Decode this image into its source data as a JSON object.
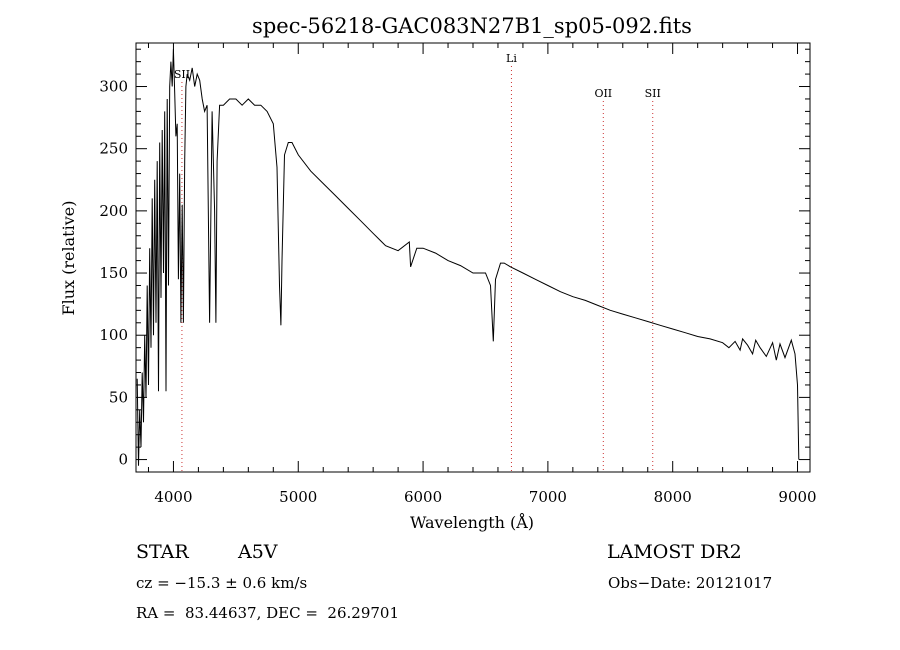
{
  "chart_data": {
    "type": "line",
    "title": "spec-56218-GAC083N27B1_sp05-092.fits",
    "xlabel": "Wavelength (Å)",
    "ylabel": "Flux (relative)",
    "xlim": [
      3700,
      9100
    ],
    "ylim": [
      -10,
      335
    ],
    "xticks": [
      4000,
      5000,
      6000,
      7000,
      8000,
      9000
    ],
    "yticks": [
      0,
      50,
      100,
      150,
      200,
      250,
      300
    ],
    "grid": false,
    "line_color": "#000000",
    "marker_color": "#cc3333",
    "spectral_lines": [
      {
        "label": "SII",
        "wavelength": 4068
      },
      {
        "label": "Li",
        "wavelength": 6708
      },
      {
        "label": "OII",
        "wavelength": 7444
      },
      {
        "label": "SII",
        "wavelength": 7840
      }
    ],
    "series": [
      {
        "x": [
          3710,
          3720,
          3730,
          3740,
          3750,
          3760,
          3770,
          3780,
          3790,
          3800,
          3810,
          3820,
          3830,
          3840,
          3850,
          3860,
          3870,
          3880,
          3890,
          3900,
          3910,
          3920,
          3930,
          3940,
          3950,
          3960,
          3970,
          3980,
          3990,
          4000,
          4010,
          4020,
          4030,
          4040,
          4050,
          4060,
          4070,
          4080,
          4090,
          4100,
          4110,
          4130,
          4150,
          4170,
          4190,
          4210,
          4230,
          4250,
          4270,
          4290,
          4310,
          4330,
          4340,
          4350,
          4370,
          4400,
          4450,
          4500,
          4550,
          4600,
          4650,
          4700,
          4750,
          4800,
          4830,
          4850,
          4861,
          4870,
          4890,
          4920,
          4950,
          5000,
          5100,
          5200,
          5300,
          5400,
          5500,
          5600,
          5700,
          5800,
          5890,
          5900,
          5950,
          6000,
          6100,
          6200,
          6300,
          6400,
          6500,
          6540,
          6563,
          6580,
          6620,
          6650,
          6700,
          6800,
          6900,
          7000,
          7100,
          7200,
          7300,
          7400,
          7500,
          7600,
          7700,
          7800,
          7900,
          8000,
          8100,
          8200,
          8300,
          8400,
          8450,
          8500,
          8540,
          8560,
          8600,
          8640,
          8665,
          8700,
          8750,
          8800,
          8830,
          8860,
          8900,
          8950,
          8980,
          9000,
          9010
        ],
        "values": [
          65,
          -5,
          40,
          10,
          70,
          30,
          100,
          50,
          140,
          60,
          170,
          90,
          210,
          100,
          225,
          110,
          240,
          55,
          255,
          130,
          265,
          150,
          280,
          55,
          290,
          140,
          300,
          320,
          300,
          330,
          295,
          260,
          270,
          145,
          230,
          110,
          205,
          110,
          240,
          300,
          310,
          305,
          315,
          300,
          310,
          305,
          290,
          280,
          285,
          110,
          280,
          200,
          110,
          240,
          285,
          285,
          290,
          290,
          285,
          290,
          285,
          285,
          280,
          270,
          235,
          140,
          108,
          160,
          245,
          255,
          255,
          245,
          232,
          222,
          212,
          202,
          192,
          182,
          172,
          168,
          175,
          155,
          170,
          170,
          166,
          160,
          156,
          150,
          150,
          140,
          95,
          145,
          158,
          158,
          155,
          150,
          145,
          140,
          135,
          131,
          128,
          124,
          120,
          117,
          114,
          111,
          108,
          105,
          102,
          99,
          97,
          94,
          90,
          95,
          88,
          97,
          92,
          85,
          96,
          90,
          83,
          94,
          80,
          93,
          82,
          96,
          85,
          60,
          0
        ]
      }
    ]
  },
  "info": {
    "class_label": "STAR",
    "subclass": "A5V",
    "survey": "LAMOST DR2",
    "cz": "cz = −15.3 ± 0.6 km/s",
    "obs_date": "Obs−Date: 20121017",
    "coords": "RA =  83.44637, DEC =  26.29701"
  }
}
